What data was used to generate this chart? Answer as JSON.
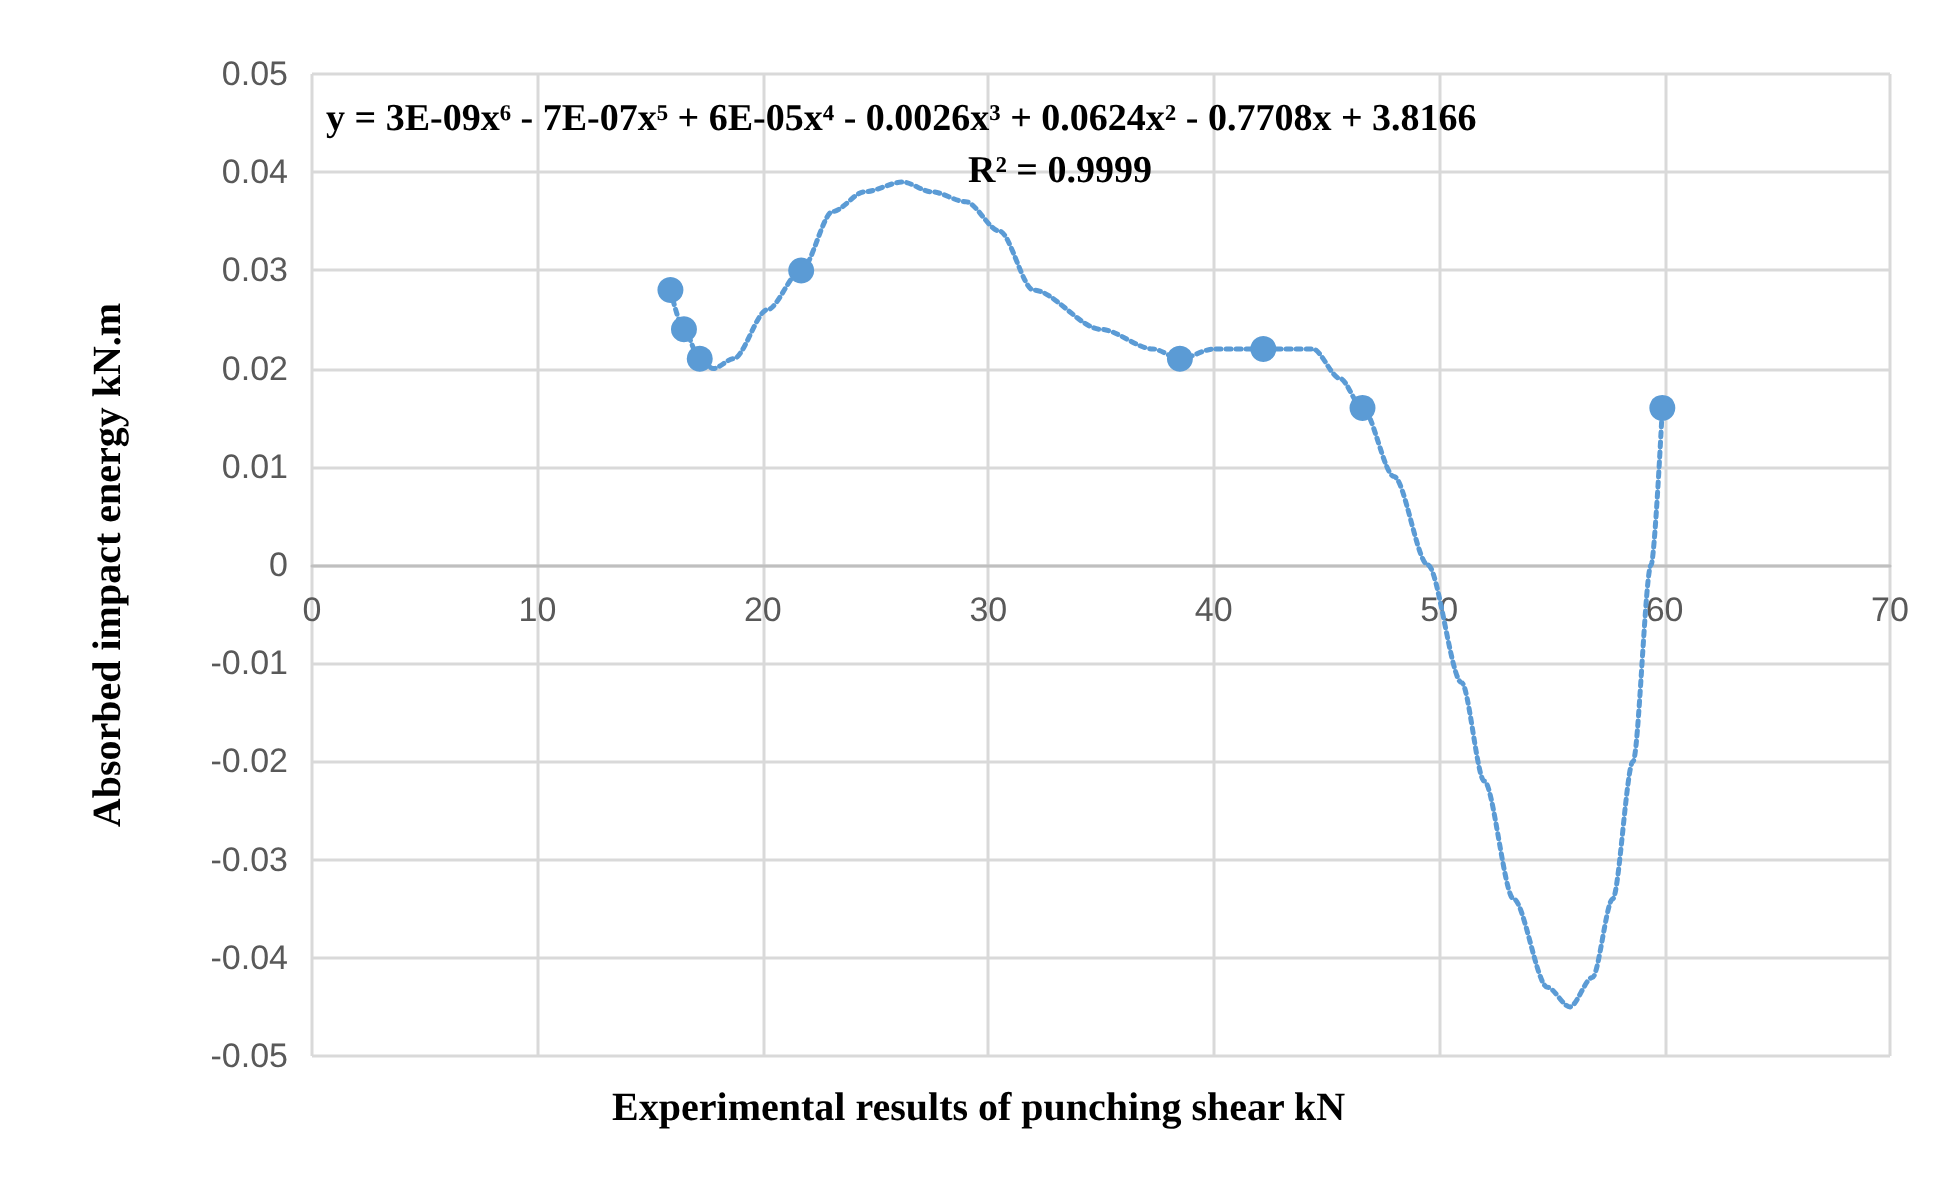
{
  "chart_data": {
    "type": "scatter",
    "xlabel": "Experimental results of punching shear kN",
    "ylabel": "Absorbed impact energy kN.m",
    "annotations": [
      "y = 3E-09x⁶ - 7E-07x⁵ + 6E-05x⁴ - 0.0026x³ + 0.0624x² - 0.7708x + 3.8166",
      "R² = 0.9999"
    ],
    "series": [
      {
        "color": "#5b9bd5",
        "marker": "circle",
        "x": [
          15.9,
          16.5,
          17.2,
          21.7,
          38.5,
          42.2,
          46.6,
          59.9
        ],
        "values": [
          0.028,
          0.024,
          0.021,
          0.03,
          0.021,
          0.022,
          0.016,
          0.016
        ]
      },
      {
        "type": "line",
        "color": "#5b9bd5",
        "marker": "none",
        "line_style": "dotted",
        "x": [
          15.9,
          16.5,
          17.2,
          17.8,
          18.7,
          20.2,
          21.7,
          23.1,
          24.5,
          26.2,
          27.5,
          29.0,
          30.5,
          32.0,
          35.0,
          37.3,
          38.5,
          40.0,
          42.2,
          44.4,
          45.6,
          46.6,
          48.0,
          49.5,
          51.0,
          52.0,
          53.3,
          54.8,
          55.8,
          56.8,
          57.7,
          58.6,
          59.4,
          59.9
        ],
        "values": [
          0.028,
          0.024,
          0.021,
          0.02,
          0.021,
          0.026,
          0.03,
          0.036,
          0.038,
          0.039,
          0.038,
          0.037,
          0.034,
          0.028,
          0.024,
          0.022,
          0.021,
          0.022,
          0.022,
          0.022,
          0.019,
          0.016,
          0.009,
          0.0,
          -0.012,
          -0.022,
          -0.034,
          -0.043,
          -0.045,
          -0.042,
          -0.034,
          -0.02,
          0.0,
          0.016
        ]
      }
    ],
    "xlim": [
      0,
      70
    ],
    "xticks": [
      0,
      10,
      20,
      30,
      40,
      50,
      60,
      70
    ],
    "ylim": [
      -0.05,
      0.05
    ],
    "yticks": [
      -0.05,
      -0.04,
      -0.03,
      -0.02,
      -0.01,
      0,
      0.01,
      0.02,
      0.03,
      0.04,
      0.05
    ],
    "grid": true
  }
}
